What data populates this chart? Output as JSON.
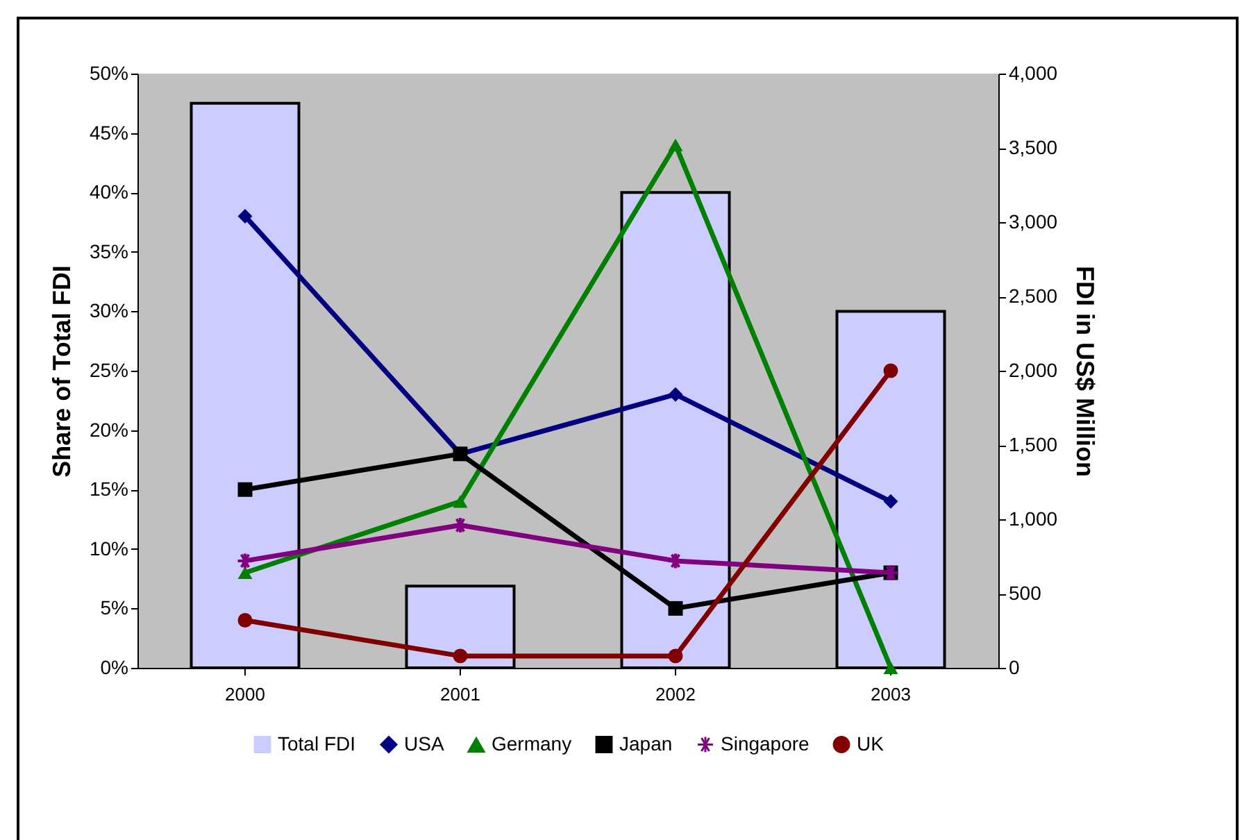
{
  "chart_data": {
    "type": "line",
    "categories": [
      "2000",
      "2001",
      "2002",
      "2003"
    ],
    "ylabel": "Share of Total FDI",
    "y2label": "FDI in US$ Million",
    "ylim": [
      0,
      50
    ],
    "yticks": [
      {
        "value": 0,
        "label": "0%"
      },
      {
        "value": 5,
        "label": "5%"
      },
      {
        "value": 10,
        "label": "10%"
      },
      {
        "value": 15,
        "label": "15%"
      },
      {
        "value": 20,
        "label": "20%"
      },
      {
        "value": 25,
        "label": "25%"
      },
      {
        "value": 30,
        "label": "30%"
      },
      {
        "value": 35,
        "label": "35%"
      },
      {
        "value": 40,
        "label": "40%"
      },
      {
        "value": 45,
        "label": "45%"
      },
      {
        "value": 50,
        "label": "50%"
      }
    ],
    "y2lim": [
      0,
      4000
    ],
    "y2ticks": [
      0,
      500,
      {
        "value": 1000,
        "label": "1,000"
      },
      {
        "value": 1500,
        "label": "1,500"
      },
      {
        "value": 2000,
        "label": "2,000"
      },
      {
        "value": 2500,
        "label": "2,500"
      },
      {
        "value": 3000,
        "label": "3,000"
      },
      {
        "value": 3500,
        "label": "3,500"
      },
      {
        "value": 4000,
        "label": "4,000"
      }
    ],
    "grid": false,
    "legend": "bottom",
    "series": [
      {
        "name": "Total FDI",
        "type": "bar",
        "axis": "y2",
        "color": "#ccccff",
        "values": [
          3800,
          550,
          3200,
          2400
        ]
      },
      {
        "name": "USA",
        "color": "#000080",
        "marker": "diamond",
        "values": [
          38,
          18,
          23,
          14
        ]
      },
      {
        "name": "Germany",
        "color": "#008000",
        "marker": "triangle",
        "values": [
          8,
          14,
          44,
          0
        ]
      },
      {
        "name": "Japan",
        "color": "#000000",
        "marker": "square",
        "values": [
          15,
          18,
          5,
          8
        ]
      },
      {
        "name": "Singapore",
        "color": "#800080",
        "marker": "cross",
        "values": [
          9,
          12,
          9,
          8
        ]
      },
      {
        "name": "UK",
        "color": "#800000",
        "marker": "circle",
        "values": [
          4,
          1,
          1,
          25
        ]
      }
    ]
  }
}
